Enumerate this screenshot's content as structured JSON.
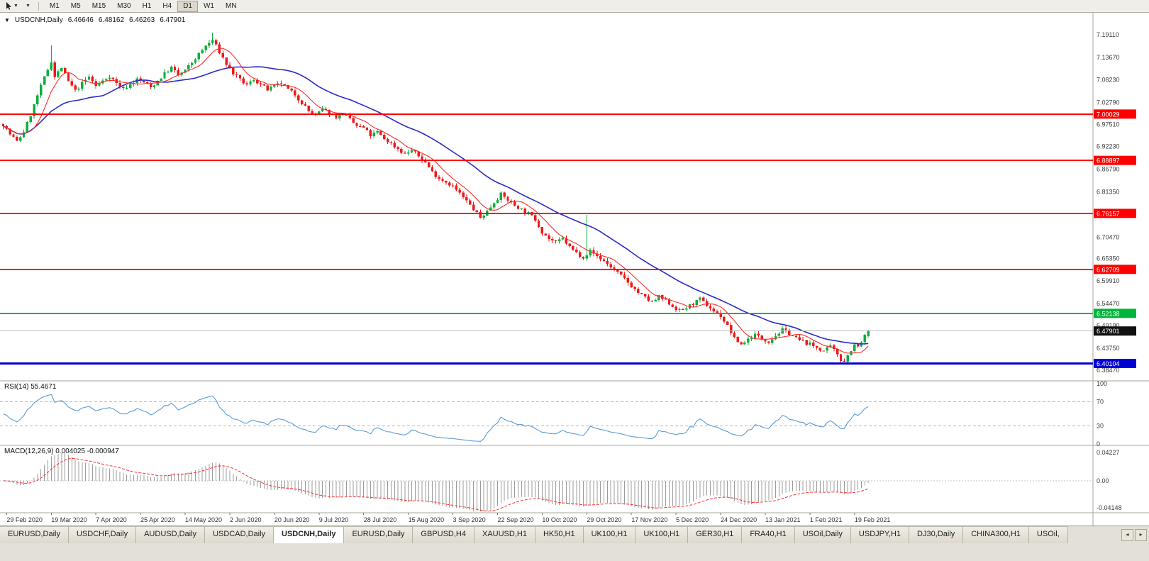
{
  "toolbar": {
    "timeframes": [
      "M1",
      "M5",
      "M15",
      "M30",
      "H1",
      "H4",
      "D1",
      "W1",
      "MN"
    ],
    "active_timeframe": "D1"
  },
  "header": {
    "symbol_period": "USDCNH,Daily",
    "open": "6.46646",
    "high": "6.48162",
    "low": "6.46263",
    "close": "6.47901"
  },
  "price_axis": {
    "labels": [
      "7.19110",
      "7.13670",
      "7.08230",
      "7.02790",
      "6.97510",
      "6.92230",
      "6.86790",
      "6.81350",
      "6.75910",
      "6.70470",
      "6.65350",
      "6.59910",
      "6.54470",
      "6.49190",
      "6.43750",
      "6.38470"
    ],
    "min": 6.3592,
    "max": 7.2403
  },
  "levels": [
    {
      "price": 7.00029,
      "label": "7.00029",
      "color": "#ff0000",
      "width": 2,
      "type": "resistance"
    },
    {
      "price": 6.88897,
      "label": "6.88897",
      "color": "#ff0000",
      "width": 2,
      "type": "resistance"
    },
    {
      "price": 6.76157,
      "label": "6.76157",
      "color": "#ff0000",
      "width": 2,
      "type": "resistance"
    },
    {
      "price": 6.62709,
      "label": "6.62709",
      "color": "#ff0000",
      "width": 2,
      "type": "resistance"
    },
    {
      "price": 6.52138,
      "label": "6.52138",
      "color": "#00b43c",
      "width": 2,
      "type": "support"
    },
    {
      "price": 6.40104,
      "label": "6.40104",
      "color": "#0000d2",
      "width": 3,
      "type": "support"
    }
  ],
  "current_price": {
    "price": 6.47901,
    "label": "6.47901"
  },
  "time_axis": [
    "29 Feb 2020",
    "19 Mar 2020",
    "7 Apr 2020",
    "25 Apr 2020",
    "14 May 2020",
    "2 Jun 2020",
    "20 Jun 2020",
    "9 Jul 2020",
    "28 Jul 2020",
    "15 Aug 2020",
    "3 Sep 2020",
    "22 Sep 2020",
    "10 Oct 2020",
    "29 Oct 2020",
    "17 Nov 2020",
    "5 Dec 2020",
    "24 Dec 2020",
    "13 Jan 2021",
    "1 Feb 2021",
    "19 Feb 2021"
  ],
  "indicators": {
    "rsi": {
      "label": "RSI(14) 55.4671",
      "period": 14,
      "value": "55.4671",
      "levels": [
        70,
        30
      ],
      "axis_labels": [
        "100",
        "70",
        "30",
        "0"
      ],
      "line_color": "#5b9bd5"
    },
    "macd": {
      "label": "MACD(12,26,9) 0.004025 -0.000947",
      "fast": 12,
      "slow": 26,
      "signal": 9,
      "main_value": "0.004025",
      "signal_value": "-0.000947",
      "axis_max": 0.04227,
      "axis_min": -0.04148,
      "axis_labels": [
        "0.04227",
        "0.00",
        "-0.04148"
      ],
      "histogram_color": "#9b9b9b",
      "signal_color": "#ff2d2d"
    }
  },
  "chart_data": {
    "type": "candlestick",
    "symbol": "USDCNH",
    "timeframe": "Daily",
    "bars": 253,
    "seed": 7,
    "noise": 0.0045,
    "wick": 0.007,
    "up_color": "#0fae3c",
    "down_color": "#f01818",
    "ma_fast": {
      "period": 8,
      "color": "#ff2a2a"
    },
    "ma_slow": {
      "period": 30,
      "color": "#2a2ac8"
    },
    "close_anchors": [
      [
        0,
        6.975
      ],
      [
        2,
        6.952
      ],
      [
        4,
        6.934
      ],
      [
        6,
        6.958
      ],
      [
        8,
        6.998
      ],
      [
        10,
        7.045
      ],
      [
        12,
        7.088
      ],
      [
        14,
        7.128
      ],
      [
        15,
        7.09
      ],
      [
        17,
        7.112
      ],
      [
        19,
        7.078
      ],
      [
        21,
        7.056
      ],
      [
        23,
        7.074
      ],
      [
        25,
        7.09
      ],
      [
        27,
        7.068
      ],
      [
        29,
        7.08
      ],
      [
        31,
        7.092
      ],
      [
        33,
        7.074
      ],
      [
        35,
        7.06
      ],
      [
        37,
        7.072
      ],
      [
        39,
        7.084
      ],
      [
        41,
        7.077
      ],
      [
        43,
        7.064
      ],
      [
        45,
        7.08
      ],
      [
        47,
        7.098
      ],
      [
        49,
        7.112
      ],
      [
        51,
        7.094
      ],
      [
        53,
        7.105
      ],
      [
        55,
        7.124
      ],
      [
        57,
        7.144
      ],
      [
        59,
        7.164
      ],
      [
        61,
        7.178
      ],
      [
        63,
        7.15
      ],
      [
        65,
        7.12
      ],
      [
        67,
        7.098
      ],
      [
        69,
        7.082
      ],
      [
        71,
        7.07
      ],
      [
        73,
        7.084
      ],
      [
        75,
        7.071
      ],
      [
        77,
        7.059
      ],
      [
        79,
        7.067
      ],
      [
        81,
        7.074
      ],
      [
        83,
        7.059
      ],
      [
        85,
        7.047
      ],
      [
        87,
        7.028
      ],
      [
        89,
        7.008
      ],
      [
        91,
        6.997
      ],
      [
        93,
        7.011
      ],
      [
        95,
        7.004
      ],
      [
        97,
        6.994
      ],
      [
        99,
        7.001
      ],
      [
        101,
        6.987
      ],
      [
        103,
        6.971
      ],
      [
        105,
        6.967
      ],
      [
        107,
        6.949
      ],
      [
        109,
        6.957
      ],
      [
        111,
        6.941
      ],
      [
        113,
        6.929
      ],
      [
        115,
        6.917
      ],
      [
        117,
        6.904
      ],
      [
        119,
        6.914
      ],
      [
        121,
        6.899
      ],
      [
        123,
        6.884
      ],
      [
        125,
        6.861
      ],
      [
        127,
        6.847
      ],
      [
        129,
        6.837
      ],
      [
        131,
        6.827
      ],
      [
        133,
        6.809
      ],
      [
        135,
        6.791
      ],
      [
        137,
        6.771
      ],
      [
        139,
        6.751
      ],
      [
        141,
        6.767
      ],
      [
        143,
        6.789
      ],
      [
        145,
        6.807
      ],
      [
        147,
        6.794
      ],
      [
        149,
        6.781
      ],
      [
        151,
        6.771
      ],
      [
        153,
        6.761
      ],
      [
        155,
        6.747
      ],
      [
        157,
        6.717
      ],
      [
        159,
        6.701
      ],
      [
        161,
        6.691
      ],
      [
        163,
        6.701
      ],
      [
        165,
        6.681
      ],
      [
        167,
        6.667
      ],
      [
        169,
        6.657
      ],
      [
        171,
        6.671
      ],
      [
        173,
        6.659
      ],
      [
        175,
        6.647
      ],
      [
        177,
        6.633
      ],
      [
        179,
        6.619
      ],
      [
        181,
        6.604
      ],
      [
        183,
        6.587
      ],
      [
        185,
        6.571
      ],
      [
        187,
        6.559
      ],
      [
        189,
        6.547
      ],
      [
        191,
        6.561
      ],
      [
        193,
        6.551
      ],
      [
        195,
        6.539
      ],
      [
        197,
        6.527
      ],
      [
        199,
        6.535
      ],
      [
        201,
        6.545
      ],
      [
        203,
        6.555
      ],
      [
        205,
        6.541
      ],
      [
        207,
        6.527
      ],
      [
        209,
        6.515
      ],
      [
        211,
        6.491
      ],
      [
        213,
        6.461
      ],
      [
        215,
        6.447
      ],
      [
        217,
        6.459
      ],
      [
        219,
        6.471
      ],
      [
        221,
        6.461
      ],
      [
        223,
        6.454
      ],
      [
        225,
        6.469
      ],
      [
        227,
        6.481
      ],
      [
        229,
        6.474
      ],
      [
        231,
        6.461
      ],
      [
        233,
        6.454
      ],
      [
        235,
        6.447
      ],
      [
        237,
        6.439
      ],
      [
        239,
        6.431
      ],
      [
        241,
        6.441
      ],
      [
        243,
        6.424
      ],
      [
        244,
        6.41
      ],
      [
        245,
        6.408
      ],
      [
        246,
        6.42
      ],
      [
        247,
        6.434
      ],
      [
        248,
        6.445
      ],
      [
        249,
        6.44
      ],
      [
        250,
        6.452
      ],
      [
        251,
        6.466
      ],
      [
        252,
        6.479
      ]
    ],
    "wick_overrides": [
      [
        14,
        "h",
        7.165
      ],
      [
        61,
        "h",
        7.196
      ],
      [
        170,
        "h",
        6.758
      ],
      [
        244,
        "l",
        6.402
      ],
      [
        245,
        "l",
        6.404
      ]
    ],
    "last_bar": {
      "o": 6.46646,
      "h": 6.48162,
      "l": 6.46263,
      "c": 6.47901
    }
  },
  "tabs": {
    "items": [
      "EURUSD,Daily",
      "USDCHF,Daily",
      "AUDUSD,Daily",
      "USDCAD,Daily",
      "USDCNH,Daily",
      "EURUSD,Daily",
      "GBPUSD,H4",
      "XAUUSD,H1",
      "HK50,H1",
      "UK100,H1",
      "UK100,H1",
      "GER30,H1",
      "FRA40,H1",
      "USOil,Daily",
      "USDJPY,H1",
      "DJ30,Daily",
      "CHINA300,H1",
      "USOil,"
    ],
    "active_index": 4,
    "scroll_left": "◂",
    "scroll_right": "▸"
  }
}
